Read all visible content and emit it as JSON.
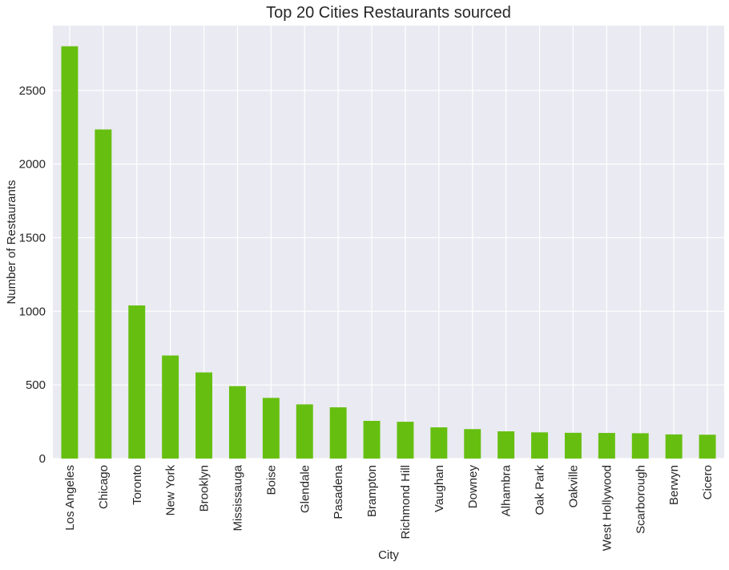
{
  "chart_data": {
    "type": "bar",
    "title": "Top 20 Cities Restaurants sourced",
    "xlabel": "City",
    "ylabel": "Number of Restaurants",
    "ylim": [
      0,
      2940
    ],
    "yticks": [
      0,
      500,
      1000,
      1500,
      2000,
      2500
    ],
    "grid": true,
    "bar_color": "#66bf10",
    "background_color": "#eaeaf2",
    "grid_color": "#ffffff",
    "categories": [
      "Los Angeles",
      "Chicago",
      "Toronto",
      "New York",
      "Brooklyn",
      "Mississauga",
      "Boise",
      "Glendale",
      "Pasadena",
      "Brampton",
      "Richmond Hill",
      "Vaughan",
      "Downey",
      "Alhambra",
      "Oak Park",
      "Oakville",
      "West Hollywood",
      "Scarborough",
      "Berwyn",
      "Cicero"
    ],
    "values": [
      2800,
      2235,
      1040,
      700,
      585,
      492,
      412,
      368,
      348,
      256,
      250,
      212,
      200,
      185,
      178,
      175,
      174,
      172,
      164,
      162
    ]
  }
}
